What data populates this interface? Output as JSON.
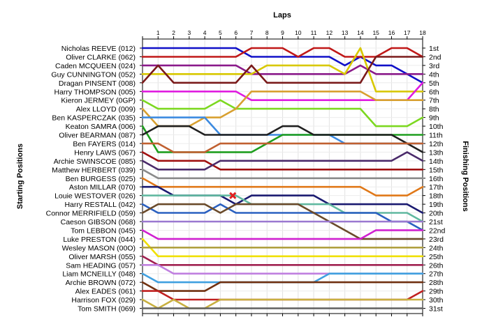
{
  "chart_data": {
    "type": "line",
    "title": "",
    "xlabel": "Laps",
    "ylabel_left": "Starting Positions",
    "ylabel_right": "Finishing Positions",
    "x": [
      0,
      1,
      2,
      3,
      4,
      5,
      6,
      7,
      8,
      9,
      10,
      11,
      12,
      13,
      14,
      15,
      16,
      17,
      18
    ],
    "x_tick_labels": [
      "1",
      "2",
      "3",
      "4",
      "5",
      "6",
      "7",
      "8",
      "9",
      "10",
      "11",
      "12",
      "13",
      "14",
      "15",
      "16",
      "17",
      "18"
    ],
    "starting_labels": [
      "Nicholas REEVE (012)",
      "Oliver CLARKE (062)",
      "Caden MCQUEEN (024)",
      "Guy CUNNINGTON (052)",
      "Dragan PINSENT (008)",
      "Harry THOMPSON (005)",
      "Kieron JERMEY (0GP)",
      "Alex LLOYD (009)",
      "Ben KASPERCZAK (035)",
      "Keaton SAMRA (006)",
      "Oliver BEARMAN (087)",
      "Ben FAYERS (014)",
      "Henry LAWS (067)",
      "Archie SWINSCOE (085)",
      "Matthew HERBERT (039)",
      "Ben BURGESS (025)",
      "Aston MILLAR (070)",
      "Louie WESTOVER (026)",
      "Harry RESTALL (042)",
      "Connor MERRIFIELD (059)",
      "Caeson GIBSON (068)",
      "Tom LEBBON (045)",
      "Luke PRESTON (044)",
      "Wesley MASON (00O)",
      "Oliver MARSH (055)",
      "Sam HEADING (057)",
      "Liam MCNEILLY (048)",
      "Archie BROWN (072)",
      "Alex EADES (061)",
      "Harrison FOX (029)",
      "Tom SMITH (069)"
    ],
    "finishing_labels": [
      "1st",
      "2nd",
      "3rd",
      "4th",
      "5th",
      "6th",
      "7th",
      "8th",
      "9th",
      "10th",
      "11th",
      "12th",
      "13th",
      "14th",
      "15th",
      "16th",
      "17th",
      "18th",
      "19th",
      "20th",
      "21st",
      "22nd",
      "23rd",
      "24th",
      "25th",
      "26th",
      "27th",
      "28th",
      "29th",
      "30th",
      "31st"
    ],
    "ylim": [
      1,
      31
    ],
    "y_inverted": true,
    "grid": true,
    "series": [
      {
        "color": "#1010c8",
        "values": [
          1,
          1,
          1,
          1,
          1,
          1,
          1,
          2,
          2,
          2,
          2,
          2,
          2,
          3,
          2,
          3,
          3,
          4,
          5
        ]
      },
      {
        "color": "#c01818",
        "values": [
          2,
          2,
          2,
          2,
          2,
          2,
          2,
          1,
          1,
          1,
          2,
          1,
          1,
          2,
          2,
          2,
          1,
          1,
          2
        ]
      },
      {
        "color": "#8a1a8a",
        "values": [
          3,
          3,
          3,
          3,
          3,
          3,
          3,
          4,
          4,
          4,
          4,
          4,
          4,
          4,
          3,
          4,
          4,
          4,
          4
        ]
      },
      {
        "color": "#d8c800",
        "values": [
          4,
          4,
          4,
          4,
          4,
          4,
          4,
          4,
          3,
          3,
          3,
          3,
          3,
          4,
          1,
          6,
          6,
          6,
          6
        ]
      },
      {
        "color": "#7a1a1a",
        "values": [
          5,
          3,
          5,
          5,
          5,
          5,
          5,
          3,
          5,
          5,
          5,
          5,
          5,
          5,
          5,
          2,
          2,
          2,
          2
        ]
      },
      {
        "color": "#e01ce0",
        "values": [
          6,
          6,
          6,
          6,
          6,
          6,
          6,
          7,
          7,
          7,
          7,
          7,
          7,
          7,
          7,
          7,
          7,
          7,
          5
        ]
      },
      {
        "color": "#7cd820",
        "values": [
          7,
          8,
          8,
          8,
          8,
          7,
          8,
          8,
          8,
          8,
          8,
          8,
          8,
          8,
          8,
          10,
          10,
          10,
          9
        ]
      },
      {
        "color": "#d8a030",
        "values": [
          8,
          10,
          10,
          10,
          9,
          9,
          8,
          6,
          6,
          6,
          6,
          6,
          6,
          6,
          6,
          7,
          7,
          7,
          7
        ]
      },
      {
        "color": "#3c8ae0",
        "values": [
          9,
          9,
          9,
          9,
          9,
          11,
          11,
          11,
          11,
          11,
          11,
          11,
          11,
          12,
          12,
          12,
          12,
          12,
          12
        ]
      },
      {
        "color": "#1e9e1e",
        "values": [
          10,
          13,
          13,
          13,
          13,
          13,
          13,
          13,
          12,
          11,
          11,
          11,
          11,
          11,
          11,
          11,
          11,
          11,
          11
        ]
      },
      {
        "color": "#202020",
        "values": [
          11,
          10,
          10,
          10,
          11,
          11,
          11,
          11,
          11,
          10,
          10,
          11,
          11,
          11,
          11,
          11,
          11,
          12,
          13
        ]
      },
      {
        "color": "#c06030",
        "values": [
          12,
          12,
          13,
          13,
          13,
          12,
          12,
          12,
          12,
          12,
          12,
          12,
          12,
          12,
          12,
          12,
          12,
          12,
          12
        ]
      },
      {
        "color": "#a01010",
        "values": [
          13,
          14,
          14,
          14,
          14,
          15,
          15,
          15,
          15,
          15,
          15,
          15,
          15,
          15,
          15,
          15,
          15,
          15,
          15
        ]
      },
      {
        "color": "#4a2a6a",
        "values": [
          14,
          15,
          15,
          15,
          15,
          14,
          14,
          14,
          14,
          14,
          14,
          14,
          14,
          14,
          14,
          14,
          14,
          13,
          14
        ]
      },
      {
        "color": "#8a8a8a",
        "values": [
          15,
          16,
          16,
          16,
          16,
          16,
          16,
          16,
          16,
          16,
          16,
          16,
          16,
          16,
          16,
          16,
          16,
          16,
          16
        ]
      },
      {
        "color": "#e07818",
        "values": [
          16,
          17,
          17,
          17,
          17,
          17,
          17,
          17,
          17,
          17,
          17,
          17,
          17,
          17,
          17,
          18,
          18,
          18,
          17
        ]
      },
      {
        "color": "#1a1a70",
        "values": [
          17,
          17,
          18,
          18,
          18,
          18,
          19,
          18,
          18,
          18,
          18,
          18,
          19,
          19,
          19,
          19,
          19,
          19,
          20
        ]
      },
      {
        "color": "#60b8a0",
        "values": [
          18,
          18,
          18,
          18,
          18,
          18,
          18,
          19,
          19,
          19,
          19,
          19,
          19,
          20,
          20,
          20,
          20,
          20,
          21
        ]
      },
      {
        "color": "#2a60c0",
        "values": [
          19,
          20,
          20,
          20,
          20,
          19,
          20,
          20,
          20,
          20,
          20,
          20,
          20,
          20,
          20,
          20,
          21,
          21,
          22
        ]
      },
      {
        "color": "#6a4a2a",
        "values": [
          20,
          19,
          19,
          19,
          19,
          20,
          19,
          19,
          19,
          19,
          19,
          20,
          21,
          22,
          23,
          23,
          23,
          23,
          23
        ]
      },
      {
        "color": "#9a78d0",
        "values": [
          21,
          21,
          21,
          21,
          21,
          21,
          21,
          21,
          21,
          21,
          21,
          21,
          21,
          21,
          21,
          21,
          21,
          21,
          21
        ]
      },
      {
        "color": "#d020d0",
        "values": [
          22,
          23,
          23,
          23,
          23,
          23,
          23,
          23,
          23,
          23,
          23,
          23,
          23,
          23,
          23,
          22,
          22,
          22,
          22
        ]
      },
      {
        "color": "#f0e000",
        "values": [
          23,
          25,
          25,
          25,
          25,
          25,
          25,
          25,
          25,
          25,
          25,
          25,
          25,
          25,
          25,
          25,
          25,
          25,
          25
        ]
      },
      {
        "color": "#b0a040",
        "values": [
          24,
          24,
          24,
          24,
          24,
          24,
          24,
          24,
          24,
          24,
          24,
          24,
          24,
          24,
          24,
          24,
          24,
          24,
          24
        ]
      },
      {
        "color": "#a02050",
        "values": [
          25,
          26,
          26,
          26,
          26,
          26,
          26,
          26,
          26,
          26,
          26,
          26,
          26,
          26,
          26,
          26,
          26,
          26,
          26
        ]
      },
      {
        "color": "#c080e0",
        "values": [
          26,
          26,
          27,
          27,
          27,
          27,
          27,
          27,
          27,
          27,
          27,
          27,
          27,
          27,
          27,
          27,
          27,
          27,
          27
        ]
      },
      {
        "color": "#40a0e0",
        "values": [
          27,
          28,
          28,
          28,
          28,
          28,
          28,
          28,
          28,
          28,
          28,
          28,
          27,
          27,
          27,
          27,
          27,
          27,
          27
        ]
      },
      {
        "color": "#703010",
        "values": [
          28,
          29,
          29,
          29,
          29,
          28,
          28,
          28,
          28,
          28,
          28,
          28,
          28,
          28,
          28,
          28,
          28,
          28,
          28
        ]
      },
      {
        "color": "#c02020",
        "values": [
          29,
          29,
          30,
          30,
          30,
          30,
          30,
          30,
          30,
          30,
          30,
          30,
          30,
          30,
          30,
          30,
          30,
          30,
          29
        ]
      },
      {
        "color": "#c8b040",
        "values": [
          30,
          31,
          30,
          31,
          31,
          30,
          30,
          30,
          30,
          30,
          30,
          30,
          30,
          30,
          30,
          30,
          30,
          30,
          30
        ]
      },
      {
        "color": "#606060",
        "values": [
          31,
          31,
          31,
          31,
          31,
          31,
          31,
          31,
          31,
          31,
          31,
          31,
          31,
          31,
          31,
          31,
          31,
          31,
          31
        ]
      }
    ],
    "annotations": [
      {
        "type": "cross-marker",
        "color": "#e02020",
        "x": 5.8,
        "y": 18
      }
    ]
  }
}
